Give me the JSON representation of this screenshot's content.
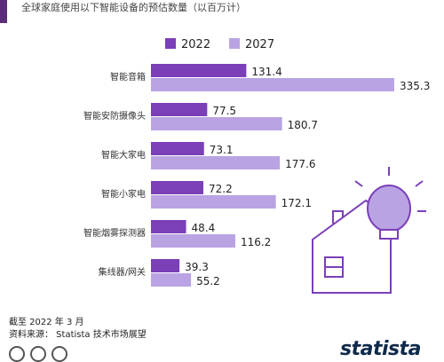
{
  "header": {
    "title": "全球家庭使用以下智能设备的预估数量（以百万计）"
  },
  "footer": {
    "date": "截至 2022 年 3 月",
    "source": "资料来源： Statista 技术市场展望",
    "brand": "statista"
  },
  "colors": {
    "series_2022": "#7b3fb8",
    "series_2027": "#b9a3e3",
    "accent": "#5a2d7a",
    "illustration": "#7b3fb8"
  },
  "chart_data": {
    "type": "bar",
    "orientation": "horizontal",
    "categories": [
      "智能音箱",
      "智能安防摄像头",
      "智能大家电",
      "智能小家电",
      "智能烟雾探测器",
      "集线器/网关"
    ],
    "series": [
      {
        "name": "2022",
        "values": [
          131.4,
          77.5,
          73.1,
          72.2,
          48.4,
          39.3
        ]
      },
      {
        "name": "2027",
        "values": [
          335.3,
          180.7,
          177.6,
          172.1,
          116.2,
          55.2
        ]
      }
    ],
    "legend_position": "top",
    "grid": false
  }
}
